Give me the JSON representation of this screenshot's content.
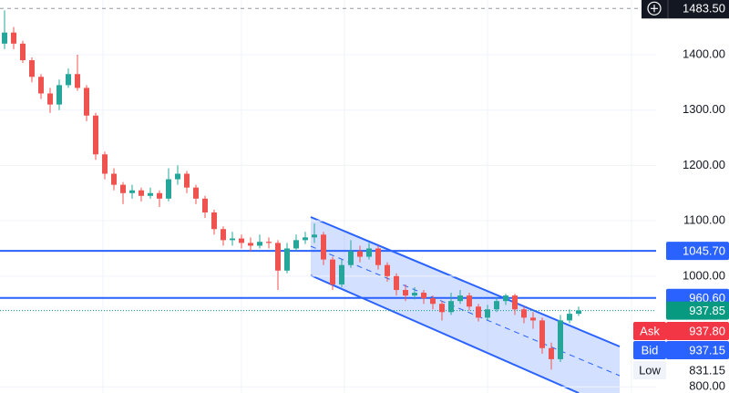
{
  "chart_data": {
    "type": "candlestick",
    "open": [
      1420,
      1440,
      1420,
      1390,
      1360,
      1330,
      1310,
      1345,
      1365,
      1340,
      1290,
      1220,
      1185,
      1165,
      1150,
      1155,
      1145,
      1150,
      1140,
      1175,
      1185,
      1160,
      1140,
      1115,
      1085,
      1065,
      1068,
      1060,
      1055,
      1062,
      1060,
      1010,
      1050,
      1065,
      1070,
      1075,
      1030,
      985,
      1020,
      1045,
      1035,
      1050,
      1020,
      1000,
      975,
      965,
      970,
      960,
      950,
      935,
      955,
      965,
      945,
      925,
      940,
      955,
      965,
      940,
      925,
      920,
      870,
      850,
      920,
      932
    ],
    "high": [
      1480,
      1450,
      1425,
      1395,
      1365,
      1340,
      1355,
      1375,
      1400,
      1345,
      1295,
      1225,
      1195,
      1170,
      1165,
      1160,
      1160,
      1155,
      1195,
      1200,
      1190,
      1165,
      1145,
      1120,
      1090,
      1080,
      1075,
      1070,
      1075,
      1070,
      1065,
      1060,
      1075,
      1080,
      1095,
      1080,
      1035,
      1030,
      1065,
      1055,
      1060,
      1055,
      1025,
      1005,
      985,
      980,
      975,
      965,
      955,
      970,
      975,
      970,
      950,
      948,
      962,
      968,
      968,
      945,
      935,
      925,
      880,
      930,
      940,
      945
    ],
    "low": [
      1410,
      1410,
      1385,
      1350,
      1320,
      1295,
      1300,
      1340,
      1335,
      1280,
      1210,
      1175,
      1155,
      1130,
      1140,
      1135,
      1140,
      1125,
      1135,
      1165,
      1150,
      1130,
      1105,
      1075,
      1055,
      1055,
      1050,
      1045,
      1050,
      1050,
      975,
      1005,
      1045,
      1058,
      1060,
      1020,
      975,
      980,
      1015,
      1025,
      1030,
      1012,
      990,
      965,
      955,
      958,
      950,
      940,
      920,
      930,
      950,
      938,
      918,
      920,
      935,
      948,
      930,
      915,
      905,
      860,
      831.15,
      845,
      915,
      928
    ],
    "close": [
      1440,
      1420,
      1390,
      1360,
      1330,
      1310,
      1345,
      1365,
      1340,
      1290,
      1220,
      1185,
      1165,
      1150,
      1155,
      1145,
      1150,
      1140,
      1175,
      1185,
      1160,
      1140,
      1115,
      1085,
      1065,
      1068,
      1060,
      1055,
      1062,
      1060,
      1010,
      1050,
      1065,
      1070,
      1075,
      1030,
      985,
      1020,
      1045,
      1035,
      1050,
      1020,
      1000,
      975,
      965,
      970,
      960,
      950,
      935,
      955,
      965,
      945,
      925,
      940,
      955,
      965,
      940,
      925,
      920,
      870,
      850,
      920,
      932,
      938
    ],
    "up_color": "#26a69a",
    "down_color": "#ef5350",
    "ylim": [
      788.9,
      1498.8
    ],
    "yticks": [
      {
        "value": 800,
        "label": "800.00"
      },
      {
        "value": 1000,
        "label": "1000.00"
      },
      {
        "value": 1100,
        "label": "1100.00"
      },
      {
        "value": 1200,
        "label": "1200.00"
      },
      {
        "value": 1300,
        "label": "1300.00"
      },
      {
        "value": 1400,
        "label": "1400.00"
      }
    ],
    "grid": true,
    "levels": [
      {
        "value": 1045.7,
        "label": "1045.70"
      },
      {
        "value": 960.6,
        "label": "960.60"
      }
    ],
    "level_color": "#2962ff",
    "crosshair": {
      "value": 1483.5,
      "label": "1483.50"
    },
    "last": {
      "value": 937.85,
      "label": "937.85",
      "color": "#089981"
    },
    "quotes": [
      {
        "name": "Ask",
        "value": 937.8,
        "label": "937.80",
        "color": "#f23645"
      },
      {
        "name": "Bid",
        "value": 937.15,
        "label": "937.15",
        "color": "#2962ff"
      },
      {
        "name": "Low",
        "value": 831.15,
        "label": "831.15",
        "color": "#e0e3eb"
      }
    ]
  }
}
